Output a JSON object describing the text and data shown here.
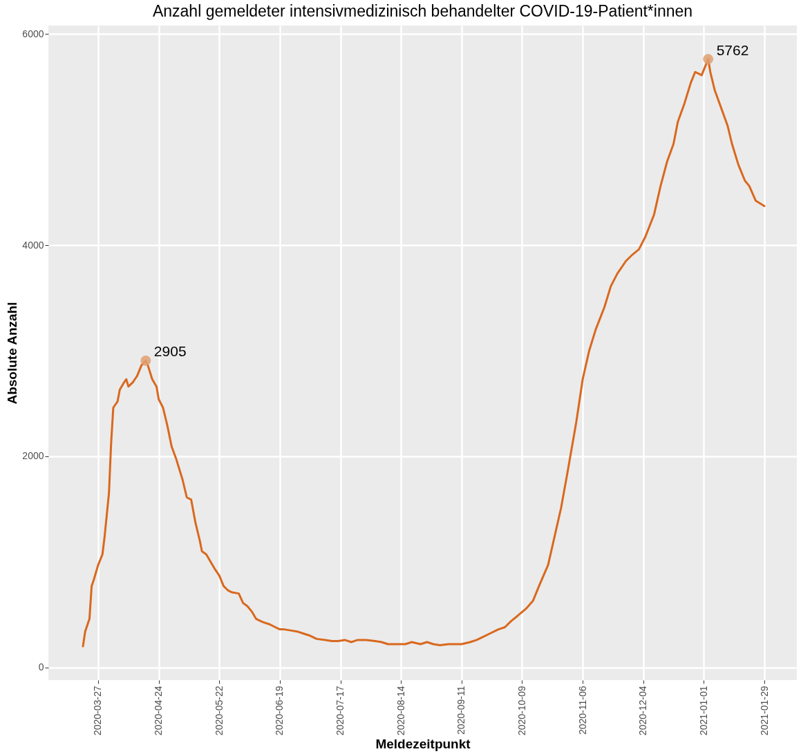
{
  "chart_data": {
    "type": "line",
    "title": "Anzahl gemeldeter intensivmedizinisch behandelter COVID-19-Patient*innen",
    "xlabel": "Meldezeitpunkt",
    "ylabel": "Absolute Anzahl",
    "xlim": [
      "2020-03-04",
      "2021-02-13"
    ],
    "ylim": [
      -120,
      6080
    ],
    "xticks": [
      "2020-03-27",
      "2020-04-24",
      "2020-05-22",
      "2020-06-19",
      "2020-07-17",
      "2020-08-14",
      "2020-09-11",
      "2020-10-09",
      "2020-11-06",
      "2020-12-04",
      "2021-01-01",
      "2021-01-29"
    ],
    "yticks": [
      0,
      2000,
      4000,
      6000
    ],
    "grid": true,
    "series": [
      {
        "color": "#d9681e",
        "x": [
          "2020-03-20",
          "2020-03-21",
          "2020-03-23",
          "2020-03-24",
          "2020-03-25",
          "2020-03-27",
          "2020-03-29",
          "2020-03-30",
          "2020-04-01",
          "2020-04-02",
          "2020-04-03",
          "2020-04-05",
          "2020-04-06",
          "2020-04-08",
          "2020-04-09",
          "2020-04-10",
          "2020-04-12",
          "2020-04-13",
          "2020-04-14",
          "2020-04-16",
          "2020-04-18",
          "2020-04-19",
          "2020-04-21",
          "2020-04-23",
          "2020-04-24",
          "2020-04-26",
          "2020-04-28",
          "2020-04-30",
          "2020-05-02",
          "2020-05-05",
          "2020-05-07",
          "2020-05-09",
          "2020-05-11",
          "2020-05-13",
          "2020-05-14",
          "2020-05-16",
          "2020-05-18",
          "2020-05-20",
          "2020-05-22",
          "2020-05-24",
          "2020-05-26",
          "2020-05-28",
          "2020-05-31",
          "2020-06-02",
          "2020-06-04",
          "2020-06-06",
          "2020-06-08",
          "2020-06-11",
          "2020-06-14",
          "2020-06-16",
          "2020-06-19",
          "2020-06-21",
          "2020-06-24",
          "2020-06-27",
          "2020-06-30",
          "2020-07-03",
          "2020-07-06",
          "2020-07-10",
          "2020-07-13",
          "2020-07-16",
          "2020-07-19",
          "2020-07-22",
          "2020-07-25",
          "2020-07-29",
          "2020-08-02",
          "2020-08-05",
          "2020-08-08",
          "2020-08-12",
          "2020-08-16",
          "2020-08-19",
          "2020-08-23",
          "2020-08-26",
          "2020-08-29",
          "2020-09-01",
          "2020-09-05",
          "2020-09-08",
          "2020-09-11",
          "2020-09-15",
          "2020-09-18",
          "2020-09-21",
          "2020-09-24",
          "2020-09-28",
          "2020-10-01",
          "2020-10-04",
          "2020-10-07",
          "2020-10-11",
          "2020-10-14",
          "2020-10-17",
          "2020-10-21",
          "2020-10-24",
          "2020-10-27",
          "2020-10-30",
          "2020-11-03",
          "2020-11-06",
          "2020-11-09",
          "2020-11-12",
          "2020-11-16",
          "2020-11-19",
          "2020-11-22",
          "2020-11-26",
          "2020-11-29",
          "2020-12-02",
          "2020-12-05",
          "2020-12-09",
          "2020-12-12",
          "2020-12-15",
          "2020-12-18",
          "2020-12-20",
          "2020-12-23",
          "2020-12-26",
          "2020-12-28",
          "2020-12-31",
          "2021-01-03",
          "2021-01-04",
          "2021-01-06",
          "2021-01-09",
          "2021-01-12",
          "2021-01-14",
          "2021-01-17",
          "2021-01-20",
          "2021-01-22",
          "2021-01-25",
          "2021-01-29"
        ],
        "values": [
          200,
          340,
          460,
          770,
          830,
          970,
          1070,
          1240,
          1650,
          2120,
          2460,
          2520,
          2630,
          2700,
          2730,
          2660,
          2700,
          2730,
          2760,
          2860,
          2905,
          2860,
          2730,
          2660,
          2540,
          2460,
          2290,
          2090,
          1980,
          1780,
          1610,
          1590,
          1370,
          1200,
          1100,
          1070,
          1000,
          930,
          870,
          770,
          730,
          710,
          700,
          610,
          580,
          530,
          460,
          430,
          410,
          390,
          360,
          360,
          350,
          340,
          320,
          300,
          270,
          260,
          250,
          250,
          260,
          240,
          260,
          260,
          250,
          240,
          220,
          220,
          220,
          240,
          220,
          240,
          220,
          210,
          220,
          220,
          220,
          240,
          260,
          290,
          320,
          360,
          380,
          440,
          490,
          560,
          630,
          780,
          970,
          1240,
          1510,
          1850,
          2320,
          2730,
          3000,
          3200,
          3410,
          3610,
          3730,
          3850,
          3910,
          3960,
          4080,
          4290,
          4560,
          4790,
          4960,
          5170,
          5340,
          5540,
          5640,
          5610,
          5762,
          5640,
          5470,
          5300,
          5130,
          4960,
          4760,
          4610,
          4560,
          4420,
          4370
        ]
      },
      {
        "type": "scatter",
        "color": "#e0a070",
        "x": [
          "2020-04-18",
          "2021-01-03"
        ],
        "values": [
          2905,
          5762
        ],
        "data_labels": true
      }
    ]
  }
}
